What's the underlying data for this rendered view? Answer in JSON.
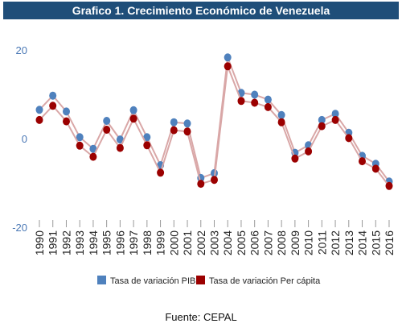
{
  "chart_data": {
    "type": "line",
    "title": "Grafico 1. Crecimiento Económico de Venezuela",
    "x": [
      "1990",
      "1991",
      "1992",
      "1993",
      "1994",
      "1995",
      "1996",
      "1997",
      "1998",
      "1999",
      "2000",
      "2001",
      "2002",
      "2003",
      "2004",
      "2005",
      "2006",
      "2007",
      "2008",
      "2009",
      "2010",
      "2011",
      "2012",
      "2013",
      "2014",
      "2015",
      "2016"
    ],
    "series": [
      {
        "name": "Tasa de variación PIB",
        "color": "#4f81bd",
        "values": [
          6.5,
          9.7,
          6.1,
          0.3,
          -2.3,
          4.0,
          -0.2,
          6.4,
          0.3,
          -6.0,
          3.7,
          3.4,
          -8.9,
          -7.8,
          18.3,
          10.3,
          9.9,
          8.8,
          5.3,
          -3.2,
          -1.5,
          4.2,
          5.6,
          1.3,
          -3.9,
          -5.7,
          -9.7
        ]
      },
      {
        "name": "Tasa de variación Per cápita",
        "color": "#9b0000",
        "values": [
          4.2,
          7.4,
          3.9,
          -1.6,
          -4.1,
          2.0,
          -2.1,
          4.5,
          -1.5,
          -7.7,
          1.9,
          1.6,
          -10.2,
          -9.3,
          16.3,
          8.5,
          8.1,
          7.1,
          3.7,
          -4.5,
          -2.9,
          2.8,
          4.2,
          0.1,
          -5.1,
          -6.8,
          -10.7
        ]
      }
    ],
    "yticks": [
      "20",
      "0",
      "-20"
    ],
    "ylim": [
      -20,
      20
    ],
    "legend_position": "bottom",
    "grid": false
  },
  "source_text": "Fuente: CEPAL"
}
